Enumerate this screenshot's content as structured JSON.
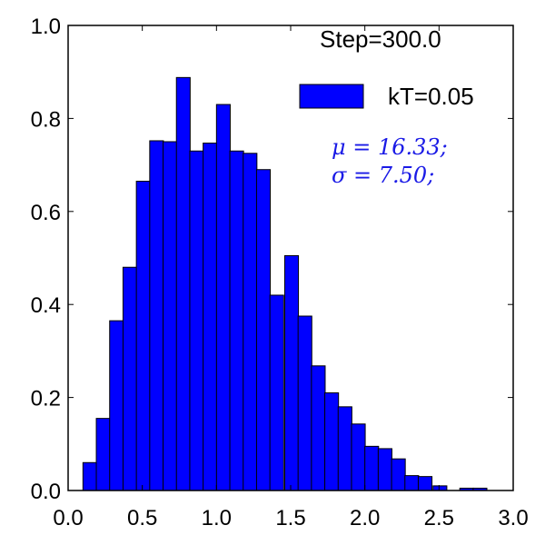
{
  "chart_data": {
    "type": "bar",
    "title": "",
    "xlabel": "",
    "ylabel": "",
    "xlim": [
      0.0,
      3.0
    ],
    "ylim": [
      0.0,
      1.0
    ],
    "bar_color": "#0000ff",
    "edge_color": "#000000",
    "bin_width": 0.0925,
    "bins": [
      {
        "x": 0.1,
        "y": 0.06
      },
      {
        "x": 0.19,
        "y": 0.155
      },
      {
        "x": 0.28,
        "y": 0.365
      },
      {
        "x": 0.37,
        "y": 0.48
      },
      {
        "x": 0.46,
        "y": 0.665
      },
      {
        "x": 0.55,
        "y": 0.752
      },
      {
        "x": 0.64,
        "y": 0.75
      },
      {
        "x": 0.73,
        "y": 0.888
      },
      {
        "x": 0.82,
        "y": 0.73
      },
      {
        "x": 0.91,
        "y": 0.747
      },
      {
        "x": 1.0,
        "y": 0.83
      },
      {
        "x": 1.09,
        "y": 0.73
      },
      {
        "x": 1.18,
        "y": 0.725
      },
      {
        "x": 1.27,
        "y": 0.69
      },
      {
        "x": 1.36,
        "y": 0.42
      },
      {
        "x": 1.46,
        "y": 0.505
      },
      {
        "x": 1.55,
        "y": 0.375
      },
      {
        "x": 1.64,
        "y": 0.268
      },
      {
        "x": 1.73,
        "y": 0.21
      },
      {
        "x": 1.82,
        "y": 0.18
      },
      {
        "x": 1.91,
        "y": 0.143
      },
      {
        "x": 2.0,
        "y": 0.095
      },
      {
        "x": 2.09,
        "y": 0.09
      },
      {
        "x": 2.18,
        "y": 0.068
      },
      {
        "x": 2.27,
        "y": 0.032
      },
      {
        "x": 2.36,
        "y": 0.03
      },
      {
        "x": 2.46,
        "y": 0.01
      },
      {
        "x": 2.55,
        "y": 0.0
      },
      {
        "x": 2.64,
        "y": 0.005
      },
      {
        "x": 2.73,
        "y": 0.005
      }
    ],
    "xticks": [
      "0.0",
      "0.5",
      "1.0",
      "1.5",
      "2.0",
      "2.5",
      "3.0"
    ],
    "yticks": [
      "0.0",
      "0.2",
      "0.4",
      "0.6",
      "0.8",
      "1.0"
    ],
    "annotations": {
      "step": "Step=300.0",
      "mu": "μ = 16.33;",
      "sigma": "σ = 7.50;"
    },
    "legend": {
      "placement": "top-right",
      "label": "kT=0.05",
      "color": "#0000ff"
    },
    "grid": false
  }
}
